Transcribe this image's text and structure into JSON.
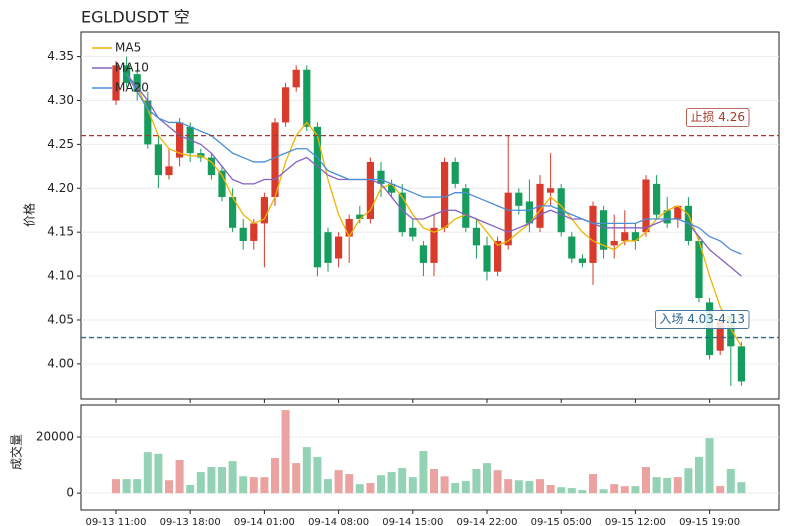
{
  "chart_data": {
    "type": "candlestick",
    "title": "EGLDUSDT  空",
    "y_label": "价格",
    "volume_label": "成交量",
    "categories": [
      "09-13 11:00",
      null,
      null,
      null,
      null,
      null,
      null,
      "09-13 18:00",
      null,
      null,
      null,
      null,
      null,
      null,
      "09-14 01:00",
      null,
      null,
      null,
      null,
      null,
      null,
      "09-14 08:00",
      null,
      null,
      null,
      null,
      null,
      null,
      "09-14 15:00",
      null,
      null,
      null,
      null,
      null,
      null,
      "09-14 22:00",
      null,
      null,
      null,
      null,
      null,
      null,
      "09-15 05:00",
      null,
      null,
      null,
      null,
      null,
      null,
      "09-15 12:00",
      null,
      null,
      null,
      null,
      null,
      null,
      "09-15 19:00",
      null,
      null,
      null
    ],
    "open": [
      4.3,
      4.34,
      4.33,
      4.3,
      4.25,
      4.215,
      4.235,
      4.27,
      4.24,
      4.235,
      4.22,
      4.19,
      4.155,
      4.14,
      4.16,
      4.19,
      4.275,
      4.315,
      4.335,
      4.27,
      4.15,
      4.12,
      4.145,
      4.17,
      4.165,
      4.22,
      4.205,
      4.195,
      4.155,
      4.135,
      4.115,
      4.155,
      4.23,
      4.2,
      4.155,
      4.135,
      4.105,
      4.135,
      4.195,
      4.185,
      4.155,
      4.195,
      4.2,
      4.145,
      4.12,
      4.115,
      4.175,
      4.135,
      4.14,
      4.15,
      4.15,
      4.205,
      4.175,
      4.165,
      4.18,
      4.14,
      4.07,
      4.015,
      4.055,
      4.02
    ],
    "high": [
      4.345,
      4.35,
      4.335,
      4.31,
      4.26,
      4.245,
      4.28,
      4.275,
      4.245,
      4.24,
      4.225,
      4.2,
      4.165,
      4.165,
      4.195,
      4.28,
      4.32,
      4.34,
      4.34,
      4.275,
      4.155,
      4.15,
      4.17,
      4.18,
      4.235,
      4.23,
      4.21,
      4.205,
      4.165,
      4.14,
      4.17,
      4.235,
      4.235,
      4.205,
      4.165,
      4.145,
      4.145,
      4.26,
      4.2,
      4.21,
      4.215,
      4.24,
      4.205,
      4.15,
      4.125,
      4.185,
      4.18,
      4.17,
      4.175,
      4.16,
      4.215,
      4.215,
      4.19,
      4.18,
      4.19,
      4.145,
      4.075,
      4.055,
      4.06,
      4.025
    ],
    "low": [
      4.295,
      4.315,
      4.3,
      4.245,
      4.2,
      4.21,
      4.225,
      4.23,
      4.23,
      4.21,
      4.185,
      4.15,
      4.13,
      4.13,
      4.11,
      4.18,
      4.27,
      4.31,
      4.265,
      4.1,
      4.105,
      4.11,
      4.115,
      4.16,
      4.16,
      4.19,
      4.19,
      4.145,
      4.14,
      4.1,
      4.1,
      4.15,
      4.2,
      4.15,
      4.12,
      4.095,
      4.1,
      4.13,
      4.17,
      4.15,
      4.15,
      4.18,
      4.145,
      4.115,
      4.11,
      4.09,
      4.12,
      4.12,
      4.135,
      4.13,
      4.145,
      4.165,
      4.155,
      4.155,
      4.135,
      4.07,
      4.005,
      4.01,
      3.975,
      3.975
    ],
    "close": [
      4.34,
      4.32,
      4.31,
      4.25,
      4.215,
      4.225,
      4.275,
      4.24,
      4.235,
      4.215,
      4.19,
      4.155,
      4.14,
      4.16,
      4.19,
      4.275,
      4.315,
      4.335,
      4.27,
      4.11,
      4.115,
      4.145,
      4.165,
      4.165,
      4.23,
      4.205,
      4.195,
      4.15,
      4.145,
      4.115,
      4.155,
      4.23,
      4.205,
      4.155,
      4.135,
      4.105,
      4.14,
      4.195,
      4.18,
      4.16,
      4.205,
      4.2,
      4.15,
      4.12,
      4.115,
      4.18,
      4.13,
      4.14,
      4.15,
      4.14,
      4.21,
      4.17,
      4.16,
      4.18,
      4.14,
      4.075,
      4.01,
      4.05,
      4.02,
      3.98
    ],
    "volume": [
      5000,
      5000,
      5000,
      14600,
      14000,
      4600,
      11800,
      2900,
      7500,
      9300,
      9300,
      11400,
      6000,
      5700,
      5700,
      12500,
      29600,
      10700,
      16400,
      12900,
      5000,
      8200,
      6800,
      3200,
      3600,
      6400,
      7500,
      8900,
      5700,
      15000,
      8600,
      6000,
      3600,
      4300,
      8600,
      10700,
      8200,
      5000,
      4600,
      4300,
      5000,
      2900,
      2100,
      1800,
      1100,
      6800,
      1400,
      3200,
      2500,
      2500,
      9300,
      5700,
      5400,
      5700,
      8900,
      12900,
      19600,
      2500,
      8600,
      3900
    ],
    "up_color": "#d83a2c",
    "down_color": "#169c5c",
    "volume_up_color": "#eaa3a0",
    "volume_down_color": "#93d2b4",
    "series": [
      {
        "name": "MA5",
        "color": "#f0b400",
        "values": [
          null,
          4.33,
          4.315,
          4.29,
          4.26,
          4.245,
          4.24,
          4.237,
          4.237,
          4.23,
          4.215,
          4.19,
          4.17,
          4.16,
          4.165,
          4.19,
          4.23,
          4.26,
          4.275,
          4.26,
          4.21,
          4.17,
          4.145,
          4.165,
          4.175,
          4.2,
          4.205,
          4.19,
          4.17,
          4.155,
          4.15,
          4.155,
          4.165,
          4.17,
          4.165,
          4.15,
          4.135,
          4.14,
          4.15,
          4.16,
          4.175,
          4.19,
          4.18,
          4.165,
          4.15,
          4.14,
          4.135,
          4.13,
          4.14,
          4.14,
          4.15,
          4.165,
          4.175,
          4.18,
          4.17,
          4.14,
          4.1,
          4.065,
          4.04,
          4.02
        ]
      },
      {
        "name": "MA10",
        "color": "#8462c2",
        "values": [
          null,
          4.33,
          4.315,
          4.3,
          4.28,
          4.27,
          4.26,
          4.255,
          4.25,
          4.24,
          4.225,
          4.21,
          4.205,
          4.205,
          4.21,
          4.21,
          4.22,
          4.23,
          4.235,
          4.225,
          4.215,
          4.21,
          4.21,
          4.21,
          4.21,
          4.205,
          4.19,
          4.175,
          4.165,
          4.165,
          4.17,
          4.175,
          4.175,
          4.17,
          4.165,
          4.16,
          4.155,
          4.15,
          4.155,
          4.16,
          4.17,
          4.175,
          4.17,
          4.165,
          4.165,
          4.16,
          4.155,
          4.155,
          4.155,
          4.155,
          4.155,
          4.16,
          4.165,
          4.165,
          4.16,
          4.145,
          4.13,
          4.12,
          4.11,
          4.1
        ]
      },
      {
        "name": "MA20",
        "color": "#4a8ed4",
        "values": [
          null,
          4.33,
          4.31,
          4.29,
          4.28,
          4.275,
          4.275,
          4.27,
          4.265,
          4.26,
          4.25,
          4.24,
          4.235,
          4.23,
          4.23,
          4.235,
          4.24,
          4.245,
          4.245,
          4.235,
          4.22,
          4.215,
          4.21,
          4.21,
          4.21,
          4.21,
          4.205,
          4.2,
          4.195,
          4.19,
          4.19,
          4.19,
          4.195,
          4.195,
          4.19,
          4.185,
          4.18,
          4.175,
          4.175,
          4.175,
          4.18,
          4.18,
          4.175,
          4.17,
          4.165,
          4.16,
          4.16,
          4.16,
          4.16,
          4.16,
          4.165,
          4.165,
          4.165,
          4.165,
          4.16,
          4.155,
          4.145,
          4.14,
          4.13,
          4.125
        ]
      }
    ],
    "hlines": [
      {
        "value": 4.26,
        "label": "止损 4.26",
        "color": "#a33a2a"
      },
      {
        "value": 4.03,
        "label": "入场 4.03-4.13",
        "color": "#2b6694"
      }
    ],
    "ylim": [
      3.96,
      4.378
    ],
    "yticks": [
      {
        "value": 4.0,
        "label": "4.00"
      },
      {
        "value": 4.05,
        "label": "4.05"
      },
      {
        "value": 4.1,
        "label": "4.10"
      },
      {
        "value": 4.15,
        "label": "4.15"
      },
      {
        "value": 4.2,
        "label": "4.20"
      },
      {
        "value": 4.25,
        "label": "4.25"
      },
      {
        "value": 4.3,
        "label": "4.30"
      },
      {
        "value": 4.35,
        "label": "4.35"
      }
    ],
    "volume_ylim": [
      -6000,
      31400
    ],
    "volume_yticks": [
      0,
      20000
    ],
    "grid": true
  }
}
